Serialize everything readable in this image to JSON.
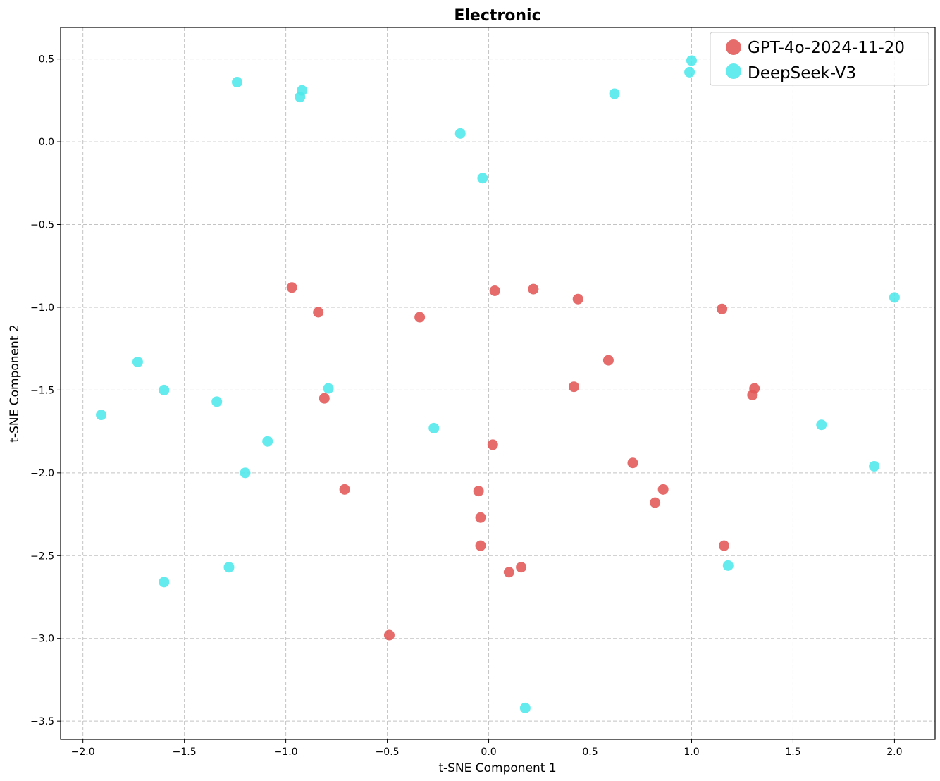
{
  "chart_data": {
    "type": "scatter",
    "title": "Electronic",
    "xlabel": "t-SNE Component 1",
    "ylabel": "t-SNE Component 2",
    "xlim": [
      -2.11,
      2.2
    ],
    "ylim": [
      -3.61,
      0.69
    ],
    "xticks": [
      -2.0,
      -1.5,
      -1.0,
      -0.5,
      0.0,
      0.5,
      1.0,
      1.5,
      2.0
    ],
    "xtick_labels": [
      "−2.0",
      "−1.5",
      "−1.0",
      "−0.5",
      "0.0",
      "0.5",
      "1.0",
      "1.5",
      "2.0"
    ],
    "yticks": [
      0.5,
      0.0,
      -0.5,
      -1.0,
      -1.5,
      -2.0,
      -2.5,
      -3.0,
      -3.5
    ],
    "ytick_labels": [
      "0.5",
      "0.0",
      "−0.5",
      "−1.0",
      "−1.5",
      "−2.0",
      "−2.5",
      "−3.0",
      "−3.5"
    ],
    "grid": true,
    "legend_position": "top-right",
    "series": [
      {
        "name": "GPT-4o-2024-11-20",
        "color": "#e35656",
        "points": [
          [
            -0.97,
            -0.88
          ],
          [
            -0.84,
            -1.03
          ],
          [
            -0.34,
            -1.06
          ],
          [
            0.03,
            -0.9
          ],
          [
            0.22,
            -0.89
          ],
          [
            0.44,
            -0.95
          ],
          [
            1.15,
            -1.01
          ],
          [
            0.59,
            -1.32
          ],
          [
            0.42,
            -1.48
          ],
          [
            1.31,
            -1.49
          ],
          [
            1.3,
            -1.53
          ],
          [
            -0.81,
            -1.55
          ],
          [
            0.02,
            -1.83
          ],
          [
            0.71,
            -1.94
          ],
          [
            -0.71,
            -2.1
          ],
          [
            -0.05,
            -2.11
          ],
          [
            0.86,
            -2.1
          ],
          [
            0.82,
            -2.18
          ],
          [
            -0.04,
            -2.27
          ],
          [
            -0.04,
            -2.44
          ],
          [
            1.16,
            -2.44
          ],
          [
            0.1,
            -2.6
          ],
          [
            0.16,
            -2.57
          ],
          [
            -0.49,
            -2.98
          ]
        ]
      },
      {
        "name": "DeepSeek-V3",
        "color": "#4de8ea",
        "points": [
          [
            -1.24,
            0.36
          ],
          [
            -0.92,
            0.31
          ],
          [
            -0.93,
            0.27
          ],
          [
            -0.14,
            0.05
          ],
          [
            -0.03,
            -0.22
          ],
          [
            0.62,
            0.29
          ],
          [
            1.0,
            0.49
          ],
          [
            0.99,
            0.42
          ],
          [
            2.0,
            -0.94
          ],
          [
            -1.73,
            -1.33
          ],
          [
            -1.6,
            -1.5
          ],
          [
            -1.34,
            -1.57
          ],
          [
            -0.79,
            -1.49
          ],
          [
            -1.91,
            -1.65
          ],
          [
            -0.27,
            -1.73
          ],
          [
            -1.09,
            -1.81
          ],
          [
            -1.2,
            -2.0
          ],
          [
            1.64,
            -1.71
          ],
          [
            1.9,
            -1.96
          ],
          [
            -1.28,
            -2.57
          ],
          [
            -1.6,
            -2.66
          ],
          [
            1.18,
            -2.56
          ],
          [
            0.18,
            -3.42
          ]
        ]
      }
    ]
  }
}
